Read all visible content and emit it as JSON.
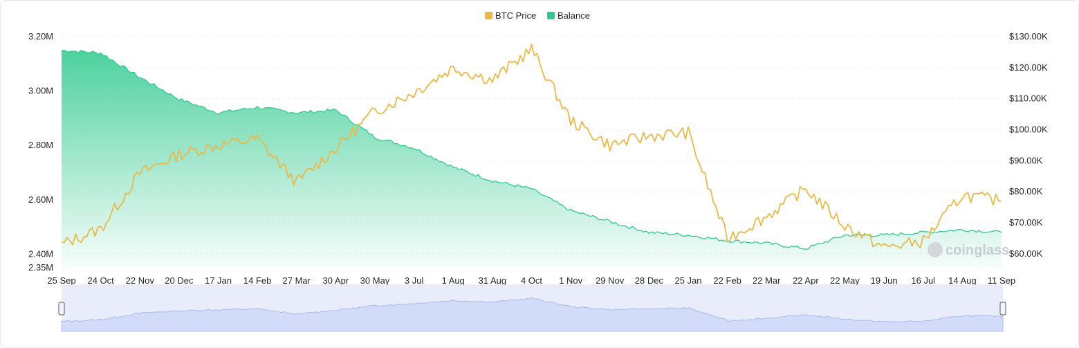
{
  "chart_data": {
    "type": "line",
    "legend": [
      {
        "name": "BTC Price",
        "color": "#e9b84a"
      },
      {
        "name": "Balance",
        "color": "#2ec98e"
      }
    ],
    "legend_position": "top-center",
    "x_tick_labels": [
      "25 Sep",
      "24 Oct",
      "22 Nov",
      "20 Dec",
      "17 Jan",
      "14 Feb",
      "27 Mar",
      "30 Apr",
      "30 May",
      "3 Jul",
      "1 Aug",
      "31 Aug",
      "4 Oct",
      "1 Nov",
      "29 Nov",
      "28 Dec",
      "25 Jan",
      "22 Feb",
      "22 Mar",
      "22 Apr",
      "22 May",
      "19 Jun",
      "16 Jul",
      "14 Aug",
      "11 Sep"
    ],
    "y_left": {
      "label": "",
      "ticks": [
        "3.20M",
        "3.00M",
        "2.80M",
        "2.60M",
        "2.40M",
        "2.35M"
      ],
      "tick_values": [
        3.2,
        3.0,
        2.8,
        2.6,
        2.4,
        2.35
      ],
      "range": [
        2.35,
        3.2
      ],
      "unit": "M"
    },
    "y_right": {
      "label": "",
      "ticks": [
        "$130.00K",
        "$120.00K",
        "$110.00K",
        "$100.00K",
        "$90.00K",
        "$80.00K",
        "$70.00K",
        "$60.00K"
      ],
      "tick_values": [
        130,
        120,
        110,
        100,
        90,
        80,
        70,
        60
      ],
      "range": [
        55.5,
        130
      ],
      "unit": "K"
    },
    "grid": "horizontal dashed",
    "series": [
      {
        "name": "BTC Price",
        "axis": "right",
        "x_index": [
          0,
          1,
          2,
          3,
          4,
          5,
          6,
          7,
          8,
          9,
          10,
          11,
          12,
          13,
          14,
          15,
          16,
          17,
          18,
          19,
          20,
          21,
          22,
          23,
          24
        ],
        "values": [
          63,
          68,
          86,
          92,
          95,
          97,
          83,
          94,
          106,
          112,
          120,
          116,
          126,
          103,
          95,
          98,
          99,
          65,
          72,
          81,
          69,
          62,
          64,
          79,
          77
        ]
      },
      {
        "name": "Balance",
        "axis": "left",
        "x_index": [
          0,
          1,
          2,
          3,
          4,
          5,
          6,
          7,
          8,
          9,
          10,
          11,
          12,
          13,
          14,
          15,
          16,
          17,
          18,
          19,
          20,
          21,
          22,
          23,
          24
        ],
        "values": [
          3.15,
          3.14,
          3.05,
          2.97,
          2.92,
          2.94,
          2.92,
          2.93,
          2.83,
          2.79,
          2.72,
          2.67,
          2.64,
          2.56,
          2.52,
          2.48,
          2.47,
          2.45,
          2.44,
          2.42,
          2.47,
          2.47,
          2.48,
          2.49,
          2.48
        ]
      }
    ],
    "navigator": true
  },
  "watermark": "coinglass"
}
